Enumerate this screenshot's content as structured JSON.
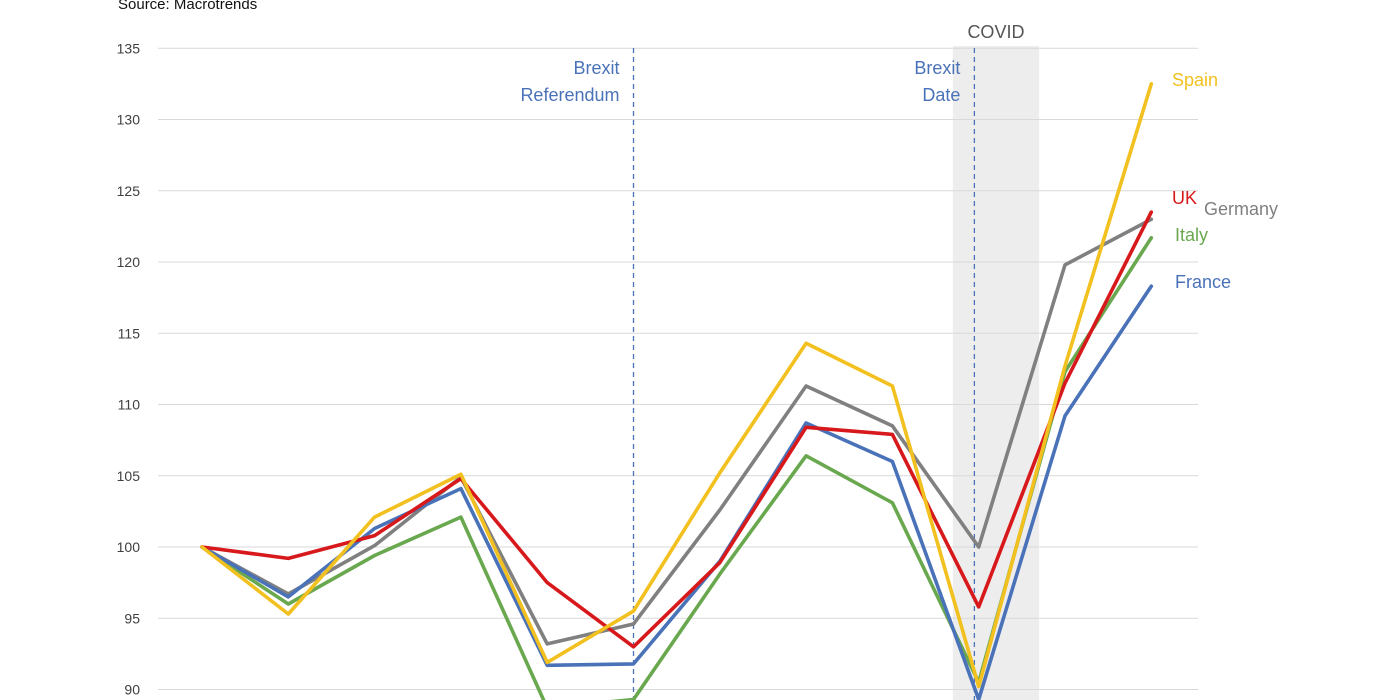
{
  "source_text": "Source: Macrotrends",
  "chart_data": {
    "type": "line",
    "title": "",
    "xlabel": "",
    "ylabel": "",
    "ylim": [
      89,
      136
    ],
    "yticks": [
      90,
      95,
      100,
      105,
      110,
      115,
      120,
      125,
      130,
      135
    ],
    "grid": true,
    "x": [
      0,
      1,
      2,
      3,
      4,
      5,
      6,
      7,
      8,
      9,
      10,
      11
    ],
    "series": [
      {
        "name": "UK",
        "color": "#d7191c",
        "values": [
          100,
          99.2,
          100.8,
          104.8,
          97.5,
          93.0,
          98.9,
          108.4,
          107.9,
          95.8,
          111.5,
          123.5
        ]
      },
      {
        "name": "Germany",
        "color": "#808080",
        "values": [
          100,
          96.7,
          100.1,
          104.9,
          93.2,
          94.6,
          102.6,
          111.3,
          108.5,
          100.0,
          119.8,
          123.0
        ]
      },
      {
        "name": "France",
        "color": "#4a72b8",
        "values": [
          100,
          96.5,
          101.3,
          104.1,
          91.7,
          91.8,
          99.0,
          108.7,
          106.0,
          89.3,
          109.2,
          118.3
        ]
      },
      {
        "name": "Italy",
        "color": "#6aa84f",
        "values": [
          100,
          96.0,
          99.4,
          102.1,
          88.7,
          89.3,
          98.1,
          106.4,
          103.1,
          90.5,
          112.3,
          121.7
        ]
      },
      {
        "name": "Spain",
        "color": "#f2c01f",
        "values": [
          100,
          95.3,
          102.1,
          105.1,
          91.9,
          95.5,
          105.2,
          114.3,
          111.3,
          90.2,
          112.7,
          132.5
        ]
      }
    ],
    "annotations": [
      {
        "id": "brexit_referendum",
        "lines": [
          "Brexit",
          "Referendum"
        ],
        "x": 5.0,
        "color": "#4a72b8"
      },
      {
        "id": "brexit_date",
        "lines": [
          "Brexit",
          "Date"
        ],
        "x": 8.95,
        "color": "#4a72b8"
      }
    ],
    "shaded_region": {
      "label": "COVID",
      "x_start": 8.7,
      "x_end": 9.7
    }
  }
}
